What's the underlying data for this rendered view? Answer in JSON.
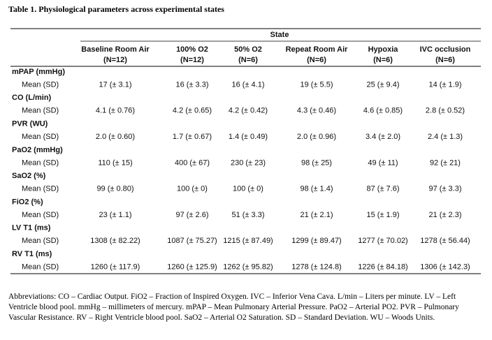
{
  "title": "Table 1. Physiological parameters across experimental states",
  "table": {
    "group_header": "State",
    "columns": [
      {
        "name": "Baseline Room Air",
        "n": "(N=12)"
      },
      {
        "name": "100% O2",
        "n": "(N=12)"
      },
      {
        "name": "50% O2",
        "n": "(N=6)"
      },
      {
        "name": "Repeat Room Air",
        "n": "(N=6)"
      },
      {
        "name": "Hypoxia",
        "n": "(N=6)"
      },
      {
        "name": "IVC occlusion",
        "n": "(N=6)"
      }
    ],
    "groups": [
      {
        "label": "mPAP (mmHg)",
        "row_label": "Mean (SD)",
        "cells": [
          "17 (± 3.1)",
          "16 (± 3.3)",
          "16 (± 4.1)",
          "19 (± 5.5)",
          "25 (± 9.4)",
          "14 (± 1.9)"
        ]
      },
      {
        "label": "CO (L/min)",
        "row_label": "Mean (SD)",
        "cells": [
          "4.1 (± 0.76)",
          "4.2 (± 0.65)",
          "4.2 (± 0.42)",
          "4.3 (± 0.46)",
          "4.6 (± 0.85)",
          "2.8 (± 0.52)"
        ]
      },
      {
        "label": "PVR (WU)",
        "row_label": "Mean (SD)",
        "cells": [
          "2.0 (± 0.60)",
          "1.7 (± 0.67)",
          "1.4 (± 0.49)",
          "2.0 (± 0.96)",
          "3.4 (± 2.0)",
          "2.4 (± 1.3)"
        ]
      },
      {
        "label": "PaO2 (mmHg)",
        "row_label": "Mean (SD)",
        "cells": [
          "110 (± 15)",
          "400 (± 67)",
          "230 (± 23)",
          "98 (± 25)",
          "49 (± 11)",
          "92 (± 21)"
        ]
      },
      {
        "label": "SaO2 (%)",
        "row_label": "Mean (SD)",
        "cells": [
          "99 (± 0.80)",
          "100 (± 0)",
          "100 (± 0)",
          "98 (± 1.4)",
          "87 (± 7.6)",
          "97 (± 3.3)"
        ]
      },
      {
        "label": "FiO2 (%)",
        "row_label": "Mean (SD)",
        "cells": [
          "23 (± 1.1)",
          "97 (± 2.6)",
          "51 (± 3.3)",
          "21 (± 2.1)",
          "15 (± 1.9)",
          "21 (± 2.3)"
        ]
      },
      {
        "label": "LV T1 (ms)",
        "row_label": "Mean (SD)",
        "cells": [
          "1308 (± 82.22)",
          "1087 (± 75.27)",
          "1215 (± 87.49)",
          "1299 (± 89.47)",
          "1277 (± 70.02)",
          "1278 (± 56.44)"
        ]
      },
      {
        "label": "RV T1 (ms)",
        "row_label": "Mean (SD)",
        "cells": [
          "1260 (± 117.9)",
          "1260 (± 125.9)",
          "1262 (± 95.82)",
          "1278 (± 124.8)",
          "1226 (± 84.18)",
          "1306 (± 142.3)"
        ]
      }
    ]
  },
  "footnote": "Abbreviations: CO – Cardiac Output. FiO2 – Fraction of Inspired Oxygen. IVC – Inferior Vena Cava. L/min – Liters per minute. LV – Left Ventricle blood pool. mmHg – millimeters of mercury. mPAP – Mean Pulmonary Arterial Pressure. PaO2 – Arterial PO2. PVR – Pulmonary Vascular Resistance. RV – Right Ventricle blood pool. SaO2 – Arterial O2 Saturation. SD – Standard Deviation. WU – Woods Units."
}
